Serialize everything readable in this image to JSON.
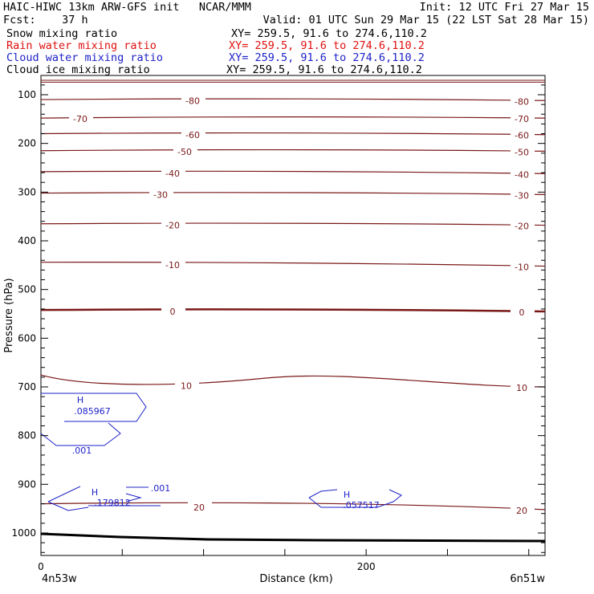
{
  "header": {
    "line1_left": "HAIC-HIWC 13km ARW-GFS init   NCAR/MMM",
    "line1_right": "Init: 12 UTC Fri 27 Mar 15",
    "line2_left": "Fcst:    37 h",
    "line2_right": "Valid: 01 UTC Sun 29 Mar 15 (22 LST Sat 28 Mar 15)",
    "fields": [
      {
        "name": "Snow mixing ratio",
        "xy": "XY= 259.5, 91.6 to 274.6,110.2",
        "color": "#000000"
      },
      {
        "name": "Rain water mixing ratio",
        "xy": "XY= 259.5, 91.6 to 274.6,110.2",
        "color": "#e01010"
      },
      {
        "name": "Cloud water mixing ratio",
        "xy": "XY= 259.5, 91.6 to 274.6,110.2",
        "color": "#1f22c8"
      },
      {
        "name": "Cloud ice mixing ratio",
        "xy": "XY= 259.5, 91.6 to 274.6,110.2",
        "color": "#000000"
      }
    ]
  },
  "chart_data": {
    "type": "line",
    "xlabel": "Distance (km)",
    "ylabel": "Pressure (hPa)",
    "xlim": [
      0,
      310
    ],
    "ylim": [
      1050,
      70
    ],
    "y_ticks": [
      100,
      200,
      300,
      400,
      500,
      600,
      700,
      800,
      900,
      1000
    ],
    "x_ticks": [
      0,
      200
    ],
    "x_endpoint_labels": [
      "4n53w",
      "6n51w"
    ],
    "temperature_contours": [
      {
        "value": -80,
        "label": "-80",
        "left_p": 110,
        "right_p": 112
      },
      {
        "value": -70,
        "label": "-70",
        "left_p": 148,
        "right_p": 148
      },
      {
        "value": -60,
        "label": "-60",
        "left_p": 180,
        "right_p": 182
      },
      {
        "value": -50,
        "label": "-50",
        "left_p": 215,
        "right_p": 216
      },
      {
        "value": -40,
        "label": "-40",
        "left_p": 258,
        "right_p": 262
      },
      {
        "value": -30,
        "label": "-30",
        "left_p": 302,
        "right_p": 305
      },
      {
        "value": -20,
        "label": "-20",
        "left_p": 365,
        "right_p": 368
      },
      {
        "value": -10,
        "label": "-10",
        "left_p": 444,
        "right_p": 452
      },
      {
        "value": 0,
        "label": "0",
        "left_p": 542,
        "right_p": 545
      },
      {
        "value": 10,
        "label": "10",
        "left_p": 692,
        "right_p": 700
      },
      {
        "value": 20,
        "label": "20",
        "left_p": 940,
        "right_p": 952
      }
    ],
    "cloud_water_maxima": [
      {
        "label": "H",
        "value": ".085967"
      },
      {
        "label": "H",
        "value": ".179812"
      },
      {
        "label": "H",
        "value": ".057517"
      }
    ],
    "cloud_water_contour_labels": [
      ".001",
      ".001"
    ]
  }
}
